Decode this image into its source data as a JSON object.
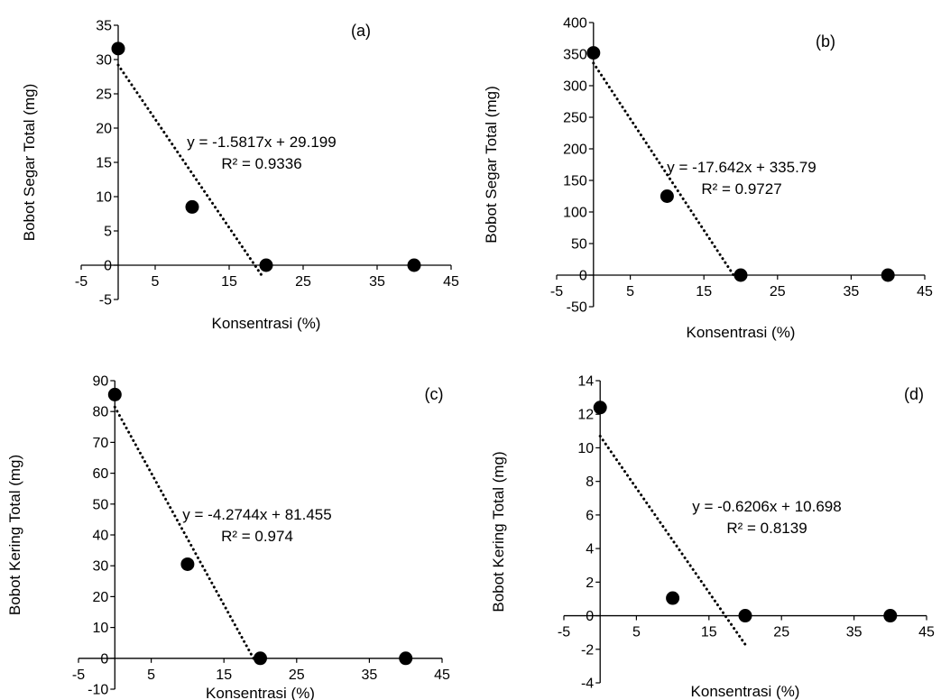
{
  "chart_data": [
    {
      "type": "scatter",
      "panel_label": "(a)",
      "xlabel": "Konsentrasi (%)",
      "ylabel": "Bobot Segar Total (mg)",
      "xlim": [
        -5,
        45
      ],
      "ylim": [
        -5,
        35
      ],
      "x_ticks": [
        -5,
        5,
        15,
        25,
        35,
        45
      ],
      "y_ticks": [
        -5,
        0,
        5,
        10,
        15,
        20,
        25,
        30,
        35
      ],
      "points": [
        {
          "x": 0,
          "y": 31.6
        },
        {
          "x": 10,
          "y": 8.5
        },
        {
          "x": 20,
          "y": 0
        },
        {
          "x": 40,
          "y": 0
        }
      ],
      "trendline": {
        "slope": -1.5817,
        "intercept": 29.199,
        "x_range": [
          0,
          19.5
        ]
      },
      "equation": "y = -1.5817x + 29.199",
      "r_squared": "R² = 0.9336",
      "grid": false,
      "legend": "none"
    },
    {
      "type": "scatter",
      "panel_label": "(b)",
      "xlabel": "Konsentrasi (%)",
      "ylabel": "Bobot Segar Total (mg)",
      "xlim": [
        -5,
        45
      ],
      "ylim": [
        -50,
        400
      ],
      "x_ticks": [
        -5,
        5,
        15,
        25,
        35,
        45
      ],
      "y_ticks": [
        -50,
        0,
        50,
        100,
        150,
        200,
        250,
        300,
        350,
        400
      ],
      "points": [
        {
          "x": 0,
          "y": 352
        },
        {
          "x": 10,
          "y": 125
        },
        {
          "x": 20,
          "y": 0
        },
        {
          "x": 40,
          "y": 0
        }
      ],
      "trendline": {
        "slope": -17.642,
        "intercept": 335.79,
        "x_range": [
          0,
          19.2
        ]
      },
      "equation": "y = -17.642x + 335.79",
      "r_squared": "R² = 0.9727",
      "grid": false,
      "legend": "none"
    },
    {
      "type": "scatter",
      "panel_label": "(c)",
      "xlabel": "Konsentrasi (%)",
      "ylabel": "Bobot Kering Total (mg)",
      "xlim": [
        -5,
        45
      ],
      "ylim": [
        -10,
        90
      ],
      "x_ticks": [
        -5,
        5,
        15,
        25,
        35,
        45
      ],
      "y_ticks": [
        -10,
        0,
        10,
        20,
        30,
        40,
        50,
        60,
        70,
        80,
        90
      ],
      "points": [
        {
          "x": 0,
          "y": 85.5
        },
        {
          "x": 10,
          "y": 30.5
        },
        {
          "x": 20,
          "y": 0
        },
        {
          "x": 40,
          "y": 0
        }
      ],
      "trendline": {
        "slope": -4.2744,
        "intercept": 81.455,
        "x_range": [
          0,
          19.3
        ]
      },
      "equation": "y = -4.2744x + 81.455",
      "r_squared": "R² = 0.974",
      "grid": false,
      "legend": "none"
    },
    {
      "type": "scatter",
      "panel_label": "(d)",
      "xlabel": "Konsentrasi (%)",
      "ylabel": "Bobot Kering Total (mg)",
      "xlim": [
        -5,
        45
      ],
      "ylim": [
        -4,
        14
      ],
      "x_ticks": [
        -5,
        5,
        15,
        25,
        35,
        45
      ],
      "y_ticks": [
        -4,
        -2,
        0,
        2,
        4,
        6,
        8,
        10,
        12,
        14
      ],
      "points": [
        {
          "x": 0,
          "y": 12.4
        },
        {
          "x": 10,
          "y": 1.05
        },
        {
          "x": 20,
          "y": 0
        },
        {
          "x": 40,
          "y": 0
        }
      ],
      "trendline": {
        "slope": -0.6206,
        "intercept": 10.698,
        "x_range": [
          0,
          20.2
        ]
      },
      "equation": "y = -0.6206x + 10.698",
      "r_squared": "R² = 0.8139",
      "grid": false,
      "legend": "none"
    }
  ]
}
